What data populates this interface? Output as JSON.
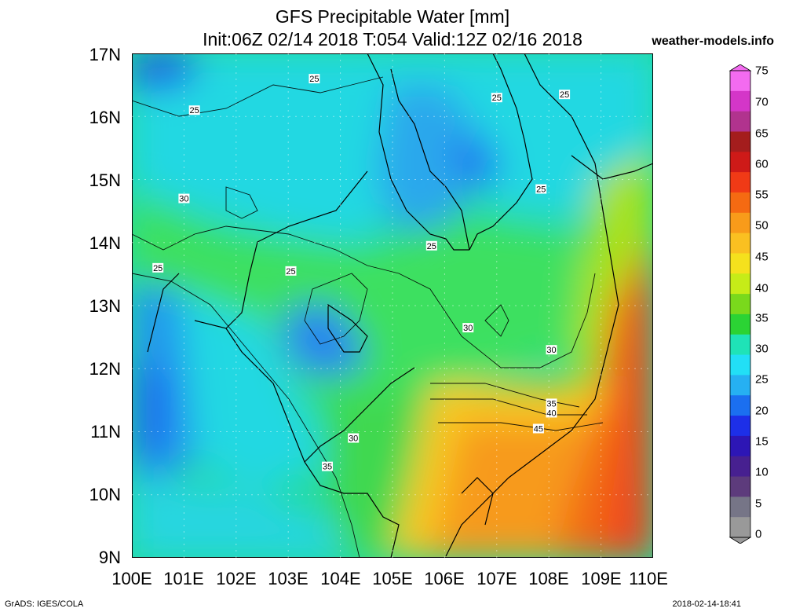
{
  "title_line1": "GFS Precipitable Water [mm]",
  "title_line2": "Init:06Z 02/14 2018 T:054 Valid:12Z 02/16 2018",
  "site": "weather-models.info",
  "footer_left": "GrADS: IGES/COLA",
  "footer_right": "2018-02-14-18:41",
  "lat_labels": [
    "17N",
    "16N",
    "15N",
    "14N",
    "13N",
    "12N",
    "11N",
    "10N",
    "9N"
  ],
  "lon_labels": [
    "100E",
    "101E",
    "102E",
    "103E",
    "104E",
    "105E",
    "106E",
    "107E",
    "108E",
    "109E",
    "110E"
  ],
  "colorbar": {
    "labels": [
      "75",
      "70",
      "65",
      "60",
      "55",
      "50",
      "45",
      "40",
      "35",
      "30",
      "25",
      "20",
      "15",
      "10",
      "5",
      "0"
    ],
    "colors": [
      "#f36bf0",
      "#d436c8",
      "#b1338e",
      "#a41d1d",
      "#ce1a18",
      "#f03a16",
      "#f56a12",
      "#f89b1a",
      "#fac021",
      "#f5e11d",
      "#c6ec18",
      "#7ad91c",
      "#2bd334",
      "#1fe3b7",
      "#22dff6",
      "#26b0f2",
      "#1b6ff0",
      "#1d2fe8",
      "#2d16b5",
      "#472090",
      "#5d3b7c",
      "#767587",
      "#999999"
    ],
    "thresholds_mm": [
      75,
      70,
      65,
      60,
      55,
      50,
      45,
      40,
      35,
      30,
      25,
      20,
      15,
      10,
      5,
      0
    ]
  },
  "contour_labels": [
    {
      "text": "25",
      "lon": 103.5,
      "lat": 16.6
    },
    {
      "text": "25",
      "lon": 101.2,
      "lat": 16.1
    },
    {
      "text": "25",
      "lon": 107.0,
      "lat": 16.3
    },
    {
      "text": "25",
      "lon": 108.3,
      "lat": 16.35
    },
    {
      "text": "25",
      "lon": 107.85,
      "lat": 14.85
    },
    {
      "text": "25",
      "lon": 105.75,
      "lat": 13.95
    },
    {
      "text": "30",
      "lon": 101.0,
      "lat": 14.7
    },
    {
      "text": "25",
      "lon": 100.5,
      "lat": 13.6
    },
    {
      "text": "25",
      "lon": 103.05,
      "lat": 13.55
    },
    {
      "text": "30",
      "lon": 106.45,
      "lat": 12.65
    },
    {
      "text": "30",
      "lon": 108.05,
      "lat": 12.3
    },
    {
      "text": "35",
      "lon": 108.05,
      "lat": 11.45
    },
    {
      "text": "40",
      "lon": 108.05,
      "lat": 11.3
    },
    {
      "text": "45",
      "lon": 107.8,
      "lat": 11.05
    },
    {
      "text": "30",
      "lon": 104.25,
      "lat": 10.9
    },
    {
      "text": "35",
      "lon": 103.75,
      "lat": 10.45
    }
  ],
  "axes": {
    "lon_range": [
      100,
      110
    ],
    "lat_range": [
      9,
      17
    ]
  }
}
